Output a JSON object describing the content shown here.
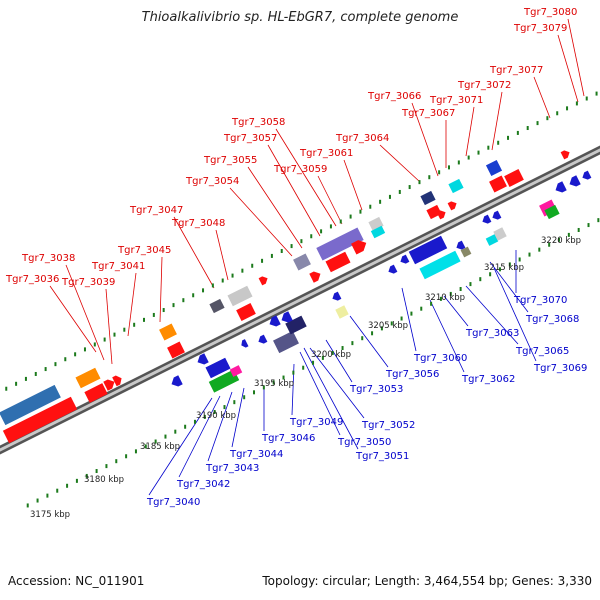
{
  "title": "Thioalkalivibrio sp. HL-EbGR7, complete genome",
  "footer": {
    "accession": "Accession: NC_011901",
    "summary": "Topology: circular; Length: 3,464,554 bp; Genes: 3,330"
  },
  "colors": {
    "forward_label": "#dd0000",
    "reverse_label": "#0000cc",
    "backbone": "#8c8c8c",
    "tick_dots": "#1c7a1c"
  },
  "ticks": [
    "3175 kbp",
    "3180 kbp",
    "3185 kbp",
    "3190 kbp",
    "3195 kbp",
    "3200 kbp",
    "3205 kbp",
    "3210 kbp",
    "3215 kbp",
    "3220 kbp"
  ],
  "top_labels": [
    "Tgr7_3036",
    "Tgr7_3038",
    "Tgr7_3039",
    "Tgr7_3041",
    "Tgr7_3045",
    "Tgr7_3047",
    "Tgr7_3048",
    "Tgr7_3054",
    "Tgr7_3055",
    "Tgr7_3057",
    "Tgr7_3058",
    "Tgr7_3059",
    "Tgr7_3061",
    "Tgr7_3064",
    "Tgr7_3066",
    "Tgr7_3067",
    "Tgr7_3071",
    "Tgr7_3072",
    "Tgr7_3077",
    "Tgr7_3079",
    "Tgr7_3080"
  ],
  "bottom_labels": [
    "Tgr7_3040",
    "Tgr7_3042",
    "Tgr7_3043",
    "Tgr7_3044",
    "Tgr7_3046",
    "Tgr7_3049",
    "Tgr7_3050",
    "Tgr7_3051",
    "Tgr7_3052",
    "Tgr7_3053",
    "Tgr7_3056",
    "Tgr7_3060",
    "Tgr7_3062",
    "Tgr7_3063",
    "Tgr7_3065",
    "Tgr7_3068",
    "Tgr7_3069",
    "Tgr7_3070"
  ]
}
